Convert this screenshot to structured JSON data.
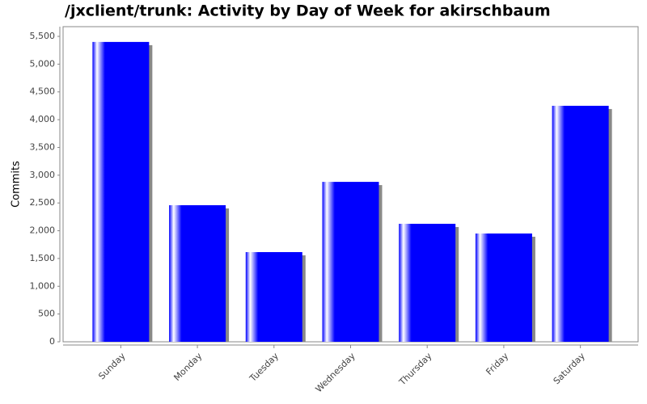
{
  "chart_data": {
    "type": "bar",
    "title": "/jxclient/trunk: Activity by Day of Week for akirschbaum",
    "y_label": "Commits",
    "categories": [
      "Sunday",
      "Monday",
      "Tuesday",
      "Wednesday",
      "Thursday",
      "Friday",
      "Saturday"
    ],
    "values": [
      5400,
      2460,
      1615,
      2880,
      2125,
      1950,
      4250
    ],
    "color": "#0000ff",
    "ylim": [
      0,
      5675
    ],
    "yticks": [
      0,
      500,
      {
        "value": 1000,
        "label": "1,000"
      },
      {
        "value": 1500,
        "label": "1,500"
      },
      {
        "value": 2000,
        "label": "2,000"
      },
      {
        "value": 2500,
        "label": "2,500"
      },
      {
        "value": 3000,
        "label": "3,000"
      },
      {
        "value": 3500,
        "label": "3,500"
      },
      {
        "value": 4000,
        "label": "4,000"
      },
      {
        "value": 4500,
        "label": "4,500"
      },
      {
        "value": 5000,
        "label": "5,000"
      },
      {
        "value": 5500,
        "label": "5,500"
      }
    ]
  }
}
